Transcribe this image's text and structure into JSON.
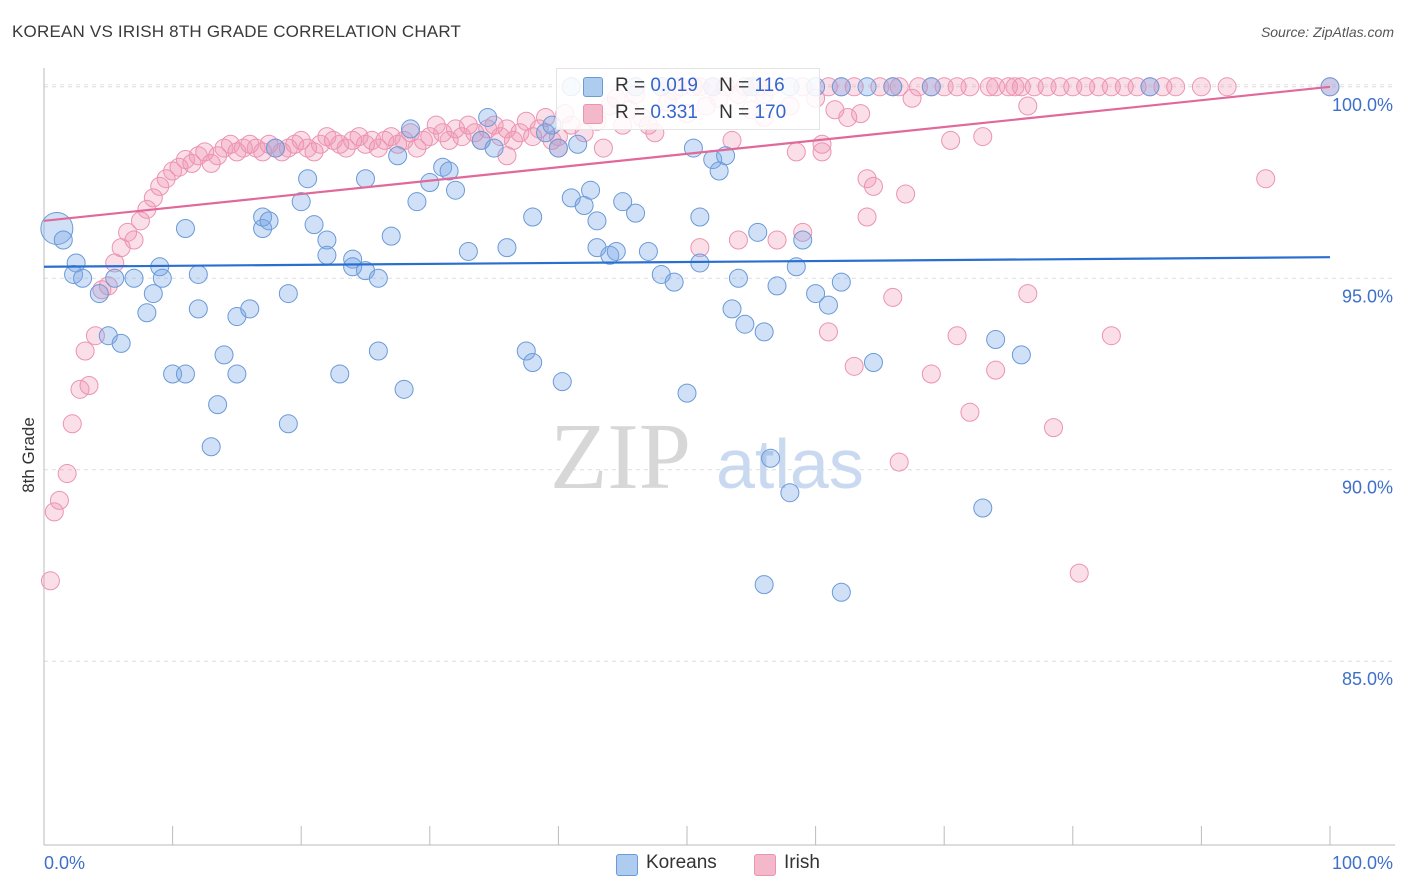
{
  "title": "KOREAN VS IRISH 8TH GRADE CORRELATION CHART",
  "source": "Source: ZipAtlas.com",
  "watermark": {
    "zip": "ZIP",
    "atlas": "atlas"
  },
  "colors": {
    "korean_fill": "rgba(120,165,230,0.35)",
    "korean_stroke": "#6a9ad8",
    "korean_line": "#2a6fd0",
    "irish_fill": "rgba(240,150,180,0.30)",
    "irish_stroke": "#ec93b2",
    "irish_line": "#e0699a",
    "axis_text": "#3d70c9",
    "grid": "#dddddd"
  },
  "legend_top": [
    {
      "r_label": "R =",
      "r_value": "0.019",
      "n_label": "N =",
      "n_value": "116",
      "swatch": "#aecbf0"
    },
    {
      "r_label": "R =",
      "r_value": "0.331",
      "n_label": "N =",
      "n_value": "170",
      "swatch": "#f4b8cb"
    }
  ],
  "legend_bottom": [
    {
      "label": "Koreans",
      "swatch": "#aecbf0"
    },
    {
      "label": "Irish",
      "swatch": "#f4b8cb"
    }
  ],
  "chart_data": {
    "type": "scatter",
    "title": "KOREAN VS IRISH 8TH GRADE CORRELATION CHART",
    "xlabel": "",
    "ylabel": "8th Grade",
    "x_tick_labels": [
      "0.0%",
      "100.0%"
    ],
    "y_tick_labels": [
      "100.0%",
      "95.0%",
      "90.0%",
      "85.0%"
    ],
    "y_ticks": [
      100,
      95,
      90,
      85
    ],
    "xlim": [
      0,
      100
    ],
    "ylim": [
      80.2,
      100.7
    ],
    "grid": true,
    "legend_position": "top-center",
    "series": [
      {
        "name": "Koreans",
        "r": 0.019,
        "n": 116,
        "trend": {
          "x": [
            0,
            100
          ],
          "y": [
            95.3,
            95.55
          ]
        },
        "points": [
          [
            1,
            96.3
          ],
          [
            1.5,
            96
          ],
          [
            2.5,
            95.4
          ],
          [
            2.3,
            95.1
          ],
          [
            3,
            95
          ],
          [
            4.3,
            94.6
          ],
          [
            5,
            93.5
          ],
          [
            6,
            93.3
          ],
          [
            5.5,
            95
          ],
          [
            7,
            95
          ],
          [
            8,
            94.1
          ],
          [
            8.5,
            94.6
          ],
          [
            9,
            95.3
          ],
          [
            9.2,
            95
          ],
          [
            10,
            92.5
          ],
          [
            11,
            92.5
          ],
          [
            11,
            96.3
          ],
          [
            12,
            95.1
          ],
          [
            12,
            94.2
          ],
          [
            13.5,
            91.7
          ],
          [
            13,
            90.6
          ],
          [
            14,
            93
          ],
          [
            15,
            94
          ],
          [
            15,
            92.5
          ],
          [
            16,
            94.2
          ],
          [
            17,
            96.3
          ],
          [
            17,
            96.6
          ],
          [
            17.5,
            96.5
          ],
          [
            18,
            98.4
          ],
          [
            19,
            94.6
          ],
          [
            19,
            91.2
          ],
          [
            20,
            97
          ],
          [
            20.5,
            97.6
          ],
          [
            21,
            96.4
          ],
          [
            22,
            96
          ],
          [
            22,
            95.6
          ],
          [
            23,
            92.5
          ],
          [
            24,
            95.5
          ],
          [
            24,
            95.3
          ],
          [
            25,
            95.2
          ],
          [
            25,
            97.6
          ],
          [
            26,
            95
          ],
          [
            26,
            93.1
          ],
          [
            27,
            96.1
          ],
          [
            27.5,
            98.2
          ],
          [
            28,
            92.1
          ],
          [
            28.5,
            98.9
          ],
          [
            29,
            97
          ],
          [
            30,
            97.5
          ],
          [
            31,
            97.9
          ],
          [
            31.5,
            97.8
          ],
          [
            32,
            97.3
          ],
          [
            33,
            95.7
          ],
          [
            34,
            98.6
          ],
          [
            34.5,
            99.2
          ],
          [
            35,
            98.4
          ],
          [
            36,
            95.8
          ],
          [
            37.5,
            93.1
          ],
          [
            38,
            96.6
          ],
          [
            38,
            92.8
          ],
          [
            39,
            98.8
          ],
          [
            39.5,
            99
          ],
          [
            40,
            98.4
          ],
          [
            40.3,
            92.3
          ],
          [
            41,
            97.1
          ],
          [
            41.5,
            98.5
          ],
          [
            42,
            96.9
          ],
          [
            42.5,
            97.3
          ],
          [
            43,
            96.5
          ],
          [
            43,
            95.8
          ],
          [
            44,
            95.6
          ],
          [
            44.5,
            95.7
          ],
          [
            45,
            97
          ],
          [
            46,
            96.7
          ],
          [
            47,
            95.7
          ],
          [
            48,
            95.1
          ],
          [
            49,
            94.9
          ],
          [
            50,
            92
          ],
          [
            50.5,
            98.4
          ],
          [
            51,
            96.6
          ],
          [
            51,
            95.4
          ],
          [
            52,
            98.1
          ],
          [
            53,
            98.2
          ],
          [
            52.5,
            97.8
          ],
          [
            53.5,
            94.2
          ],
          [
            54,
            95
          ],
          [
            54.5,
            93.8
          ],
          [
            55.5,
            96.2
          ],
          [
            56,
            93.6
          ],
          [
            56,
            87
          ],
          [
            56.5,
            90.3
          ],
          [
            57,
            94.8
          ],
          [
            58,
            89.4
          ],
          [
            58.5,
            95.3
          ],
          [
            59,
            96
          ],
          [
            60,
            94.6
          ],
          [
            61,
            94.3
          ],
          [
            62,
            94.9
          ],
          [
            62,
            86.8
          ],
          [
            64.5,
            92.8
          ],
          [
            64,
            100
          ],
          [
            73,
            89
          ],
          [
            74,
            93.4
          ],
          [
            76,
            93
          ],
          [
            86,
            100
          ],
          [
            100,
            100
          ],
          [
            46,
            100
          ],
          [
            41,
            100
          ],
          [
            48,
            100
          ],
          [
            52,
            100
          ],
          [
            55,
            100
          ],
          [
            58,
            100
          ],
          [
            60,
            100
          ],
          [
            62,
            100
          ],
          [
            66,
            100
          ],
          [
            69,
            100
          ]
        ]
      },
      {
        "name": "Irish",
        "r": 0.331,
        "n": 170,
        "trend": {
          "x": [
            0,
            100
          ],
          "y": [
            96.5,
            100
          ]
        },
        "points": [
          [
            0.5,
            87.1
          ],
          [
            0.8,
            88.9
          ],
          [
            1.2,
            89.2
          ],
          [
            1.8,
            89.9
          ],
          [
            2.2,
            91.2
          ],
          [
            2.8,
            92.1
          ],
          [
            3.2,
            93.1
          ],
          [
            3.5,
            92.2
          ],
          [
            4,
            93.5
          ],
          [
            4.5,
            94.7
          ],
          [
            5,
            94.8
          ],
          [
            5.5,
            95.4
          ],
          [
            6,
            95.8
          ],
          [
            6.5,
            96.2
          ],
          [
            7,
            96
          ],
          [
            7.5,
            96.5
          ],
          [
            8,
            96.8
          ],
          [
            8.5,
            97.1
          ],
          [
            9,
            97.4
          ],
          [
            9.5,
            97.6
          ],
          [
            10,
            97.8
          ],
          [
            10.5,
            97.9
          ],
          [
            11,
            98.1
          ],
          [
            11.5,
            98
          ],
          [
            12,
            98.2
          ],
          [
            12.5,
            98.3
          ],
          [
            13,
            98
          ],
          [
            13.5,
            98.2
          ],
          [
            14,
            98.4
          ],
          [
            14.5,
            98.5
          ],
          [
            15,
            98.3
          ],
          [
            15.5,
            98.4
          ],
          [
            16,
            98.5
          ],
          [
            16.5,
            98.4
          ],
          [
            17,
            98.3
          ],
          [
            17.5,
            98.5
          ],
          [
            18,
            98.4
          ],
          [
            18.5,
            98.3
          ],
          [
            19,
            98.4
          ],
          [
            19.5,
            98.5
          ],
          [
            20,
            98.6
          ],
          [
            20.5,
            98.4
          ],
          [
            21,
            98.3
          ],
          [
            21.5,
            98.5
          ],
          [
            22,
            98.7
          ],
          [
            22.5,
            98.6
          ],
          [
            23,
            98.5
          ],
          [
            23.5,
            98.4
          ],
          [
            24,
            98.6
          ],
          [
            24.5,
            98.7
          ],
          [
            25,
            98.5
          ],
          [
            25.5,
            98.6
          ],
          [
            26,
            98.4
          ],
          [
            26.5,
            98.6
          ],
          [
            27,
            98.7
          ],
          [
            27.5,
            98.5
          ],
          [
            28,
            98.6
          ],
          [
            28.5,
            98.8
          ],
          [
            29,
            98.4
          ],
          [
            29.5,
            98.6
          ],
          [
            30,
            98.7
          ],
          [
            30.5,
            99
          ],
          [
            31,
            98.8
          ],
          [
            31.5,
            98.6
          ],
          [
            32,
            98.9
          ],
          [
            32.5,
            98.7
          ],
          [
            33,
            99
          ],
          [
            33.5,
            98.8
          ],
          [
            34,
            98.6
          ],
          [
            34.5,
            98.9
          ],
          [
            35,
            99
          ],
          [
            35.5,
            98.7
          ],
          [
            36,
            98.9
          ],
          [
            36.5,
            98.6
          ],
          [
            37,
            98.8
          ],
          [
            37.5,
            99.1
          ],
          [
            38,
            98.7
          ],
          [
            38.5,
            98.9
          ],
          [
            39,
            99.2
          ],
          [
            39.5,
            98.6
          ],
          [
            40,
            98.4
          ],
          [
            40.5,
            99.3
          ],
          [
            41,
            99
          ],
          [
            42,
            98.8
          ],
          [
            43,
            99.1
          ],
          [
            43.5,
            98.4
          ],
          [
            44,
            99.5
          ],
          [
            44.5,
            99.7
          ],
          [
            45,
            99
          ],
          [
            45.5,
            99.4
          ],
          [
            46,
            99.8
          ],
          [
            46.5,
            99.2
          ],
          [
            47,
            99
          ],
          [
            47.5,
            98.8
          ],
          [
            48,
            100
          ],
          [
            48.5,
            99.6
          ],
          [
            49,
            99.9
          ],
          [
            49.5,
            100
          ],
          [
            50,
            99.3
          ],
          [
            50.5,
            100
          ],
          [
            51,
            100
          ],
          [
            51.5,
            99.5
          ],
          [
            52,
            100
          ],
          [
            52.5,
            99.7
          ],
          [
            53,
            100
          ],
          [
            53.5,
            98.6
          ],
          [
            54,
            99.8
          ],
          [
            54.5,
            100
          ],
          [
            55,
            99.4
          ],
          [
            55.5,
            100
          ],
          [
            56,
            99.2
          ],
          [
            56.5,
            100
          ],
          [
            57,
            96
          ],
          [
            58,
            99.5
          ],
          [
            58.5,
            98.3
          ],
          [
            59,
            100
          ],
          [
            60,
            99.7
          ],
          [
            60.5,
            98.3
          ],
          [
            61,
            100
          ],
          [
            61.5,
            99.4
          ],
          [
            62,
            100
          ],
          [
            62.5,
            99.2
          ],
          [
            63,
            100
          ],
          [
            64,
            97.6
          ],
          [
            64.5,
            97.4
          ],
          [
            65,
            100
          ],
          [
            66,
            100
          ],
          [
            66.5,
            100
          ],
          [
            67,
            97.2
          ],
          [
            68,
            100
          ],
          [
            69,
            100
          ],
          [
            70,
            100
          ],
          [
            70.5,
            98.6
          ],
          [
            71,
            100
          ],
          [
            72,
            100
          ],
          [
            73,
            98.7
          ],
          [
            73.5,
            100
          ],
          [
            74,
            100
          ],
          [
            75,
            100
          ],
          [
            76,
            100
          ],
          [
            76.5,
            99.5
          ],
          [
            77,
            100
          ],
          [
            78,
            100
          ],
          [
            79,
            100
          ],
          [
            80,
            100
          ],
          [
            81,
            100
          ],
          [
            82,
            100
          ],
          [
            83,
            100
          ],
          [
            84,
            100
          ],
          [
            85,
            100
          ],
          [
            86,
            100
          ],
          [
            87,
            100
          ],
          [
            88,
            100
          ],
          [
            90,
            100
          ],
          [
            92,
            100
          ],
          [
            95,
            97.6
          ],
          [
            100,
            100
          ],
          [
            54,
            96
          ],
          [
            59,
            96.2
          ],
          [
            64,
            96.6
          ],
          [
            51,
            95.8
          ],
          [
            61,
            93.6
          ],
          [
            63,
            92.7
          ],
          [
            66,
            94.5
          ],
          [
            69,
            92.5
          ],
          [
            71,
            93.5
          ],
          [
            74,
            92.6
          ],
          [
            76.5,
            94.6
          ],
          [
            78.5,
            91.1
          ],
          [
            80.5,
            87.3
          ],
          [
            83,
            93.5
          ],
          [
            66.5,
            90.2
          ],
          [
            72,
            91.5
          ],
          [
            36,
            98.2
          ],
          [
            40,
            98.7
          ],
          [
            56,
            99.8
          ],
          [
            60.5,
            98.5
          ],
          [
            63.5,
            99.3
          ],
          [
            67.5,
            99.7
          ],
          [
            75.5,
            100
          ]
        ]
      }
    ]
  }
}
